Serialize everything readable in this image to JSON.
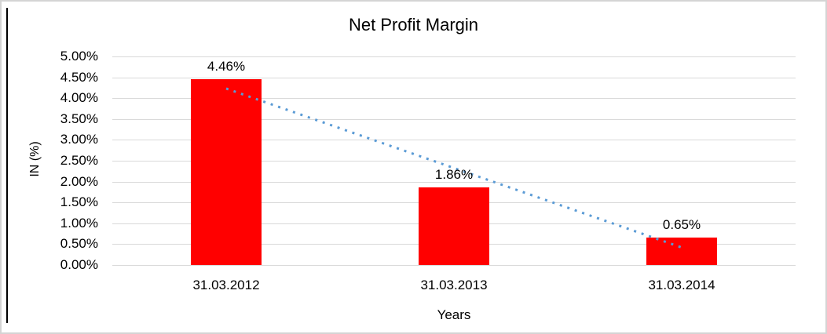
{
  "chart": {
    "colors": {
      "bar": "#ff0000",
      "trendline": "#5b9bd5",
      "gridline": "#d9d9d9",
      "text": "#000000",
      "frame_border": "#d4d4d4",
      "left_rule": "#000000"
    }
  },
  "chart_data": {
    "type": "bar",
    "title": "Net Profit Margin",
    "xlabel": "Years",
    "ylabel": "IN (%)",
    "categories": [
      "31.03.2012",
      "31.03.2013",
      "31.03.2014"
    ],
    "values": [
      4.46,
      1.86,
      0.65
    ],
    "data_labels": [
      "4.46%",
      "1.86%",
      "0.65%"
    ],
    "ylim": [
      0,
      5
    ],
    "ytick_step": 0.5,
    "ytick_labels": [
      "0.00%",
      "0.50%",
      "1.00%",
      "1.50%",
      "2.00%",
      "2.50%",
      "3.00%",
      "3.50%",
      "4.00%",
      "4.50%",
      "5.00%"
    ],
    "grid": true,
    "legend": false,
    "trendline": {
      "type": "linear",
      "style": "dotted",
      "start_value": 4.23,
      "end_value": 0.42
    }
  }
}
